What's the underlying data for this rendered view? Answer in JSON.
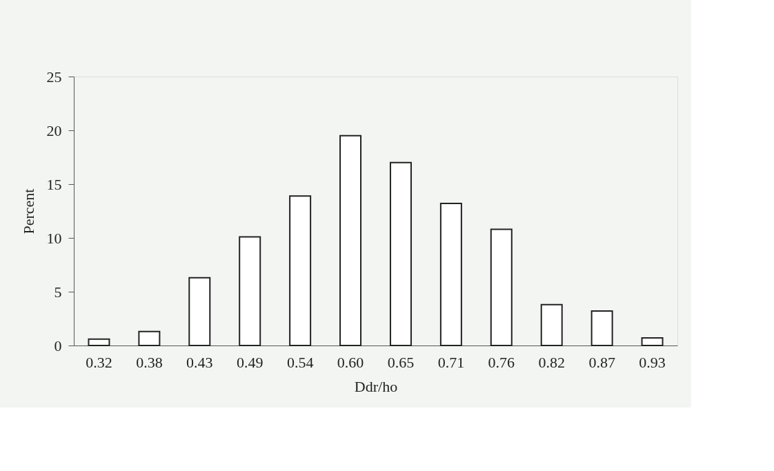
{
  "chart_data": {
    "type": "bar",
    "xlabel": "Ddr/ho",
    "ylabel": "Percent",
    "categories": [
      "0.32",
      "0.38",
      "0.43",
      "0.49",
      "0.54",
      "0.60",
      "0.65",
      "0.71",
      "0.76",
      "0.82",
      "0.87",
      "0.93"
    ],
    "values": [
      0.6,
      1.3,
      6.3,
      10.1,
      13.9,
      19.5,
      17.0,
      13.2,
      10.8,
      3.8,
      3.2,
      0.7
    ],
    "color": "#ffffff",
    "ylim": [
      0,
      25
    ],
    "yticks": [
      0,
      5,
      10,
      15,
      20,
      25
    ],
    "grid": false
  }
}
